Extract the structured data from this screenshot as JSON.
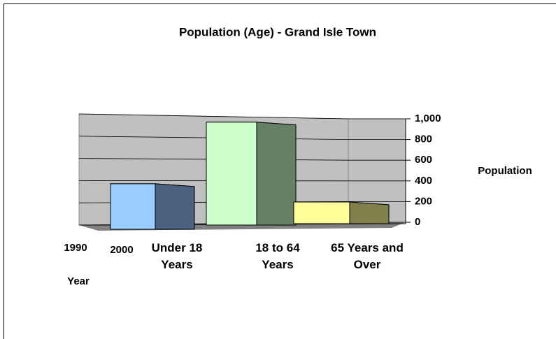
{
  "chart_data": {
    "type": "bar3d",
    "title": "Population (Age) - Grand Isle Town",
    "ylabel": "Population",
    "depth_label": "Year",
    "depth_categories": [
      "1990",
      "2000"
    ],
    "categories": [
      "Under 18 Years",
      "18 to 64 Years",
      "65 Years and Over"
    ],
    "values": [
      420,
      950,
      200
    ],
    "colors": [
      "#99ccff",
      "#ccffcc",
      "#ffff99"
    ],
    "side_colors": [
      "#4a6280",
      "#668066",
      "#80804d"
    ],
    "ylim": [
      0,
      1000
    ],
    "yticks": [
      0,
      200,
      400,
      600,
      800,
      {
        "value": 1000,
        "label": "1,000"
      }
    ],
    "grid": true
  }
}
